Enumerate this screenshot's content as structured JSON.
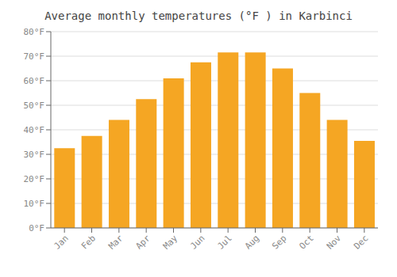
{
  "chart_data": {
    "type": "bar",
    "title": "Average monthly temperatures (°F ) in Karbinci",
    "categories": [
      "Jan",
      "Feb",
      "Mar",
      "Apr",
      "May",
      "Jun",
      "Jul",
      "Aug",
      "Sep",
      "Oct",
      "Nov",
      "Dec"
    ],
    "values": [
      32.5,
      37.5,
      44,
      52.5,
      61,
      67.5,
      71.5,
      71.5,
      65,
      55,
      44,
      35.5
    ],
    "color": "#F5A623",
    "ylim": [
      0,
      80
    ],
    "yticks": [
      {
        "value": 0,
        "label": "0°F"
      },
      {
        "value": 10,
        "label": "10°F"
      },
      {
        "value": 20,
        "label": "20°F"
      },
      {
        "value": 30,
        "label": "30°F"
      },
      {
        "value": 40,
        "label": "40°F"
      },
      {
        "value": 50,
        "label": "50°F"
      },
      {
        "value": 60,
        "label": "60°F"
      },
      {
        "value": 70,
        "label": "70°F"
      },
      {
        "value": 80,
        "label": "80°F"
      }
    ],
    "grid": true
  }
}
